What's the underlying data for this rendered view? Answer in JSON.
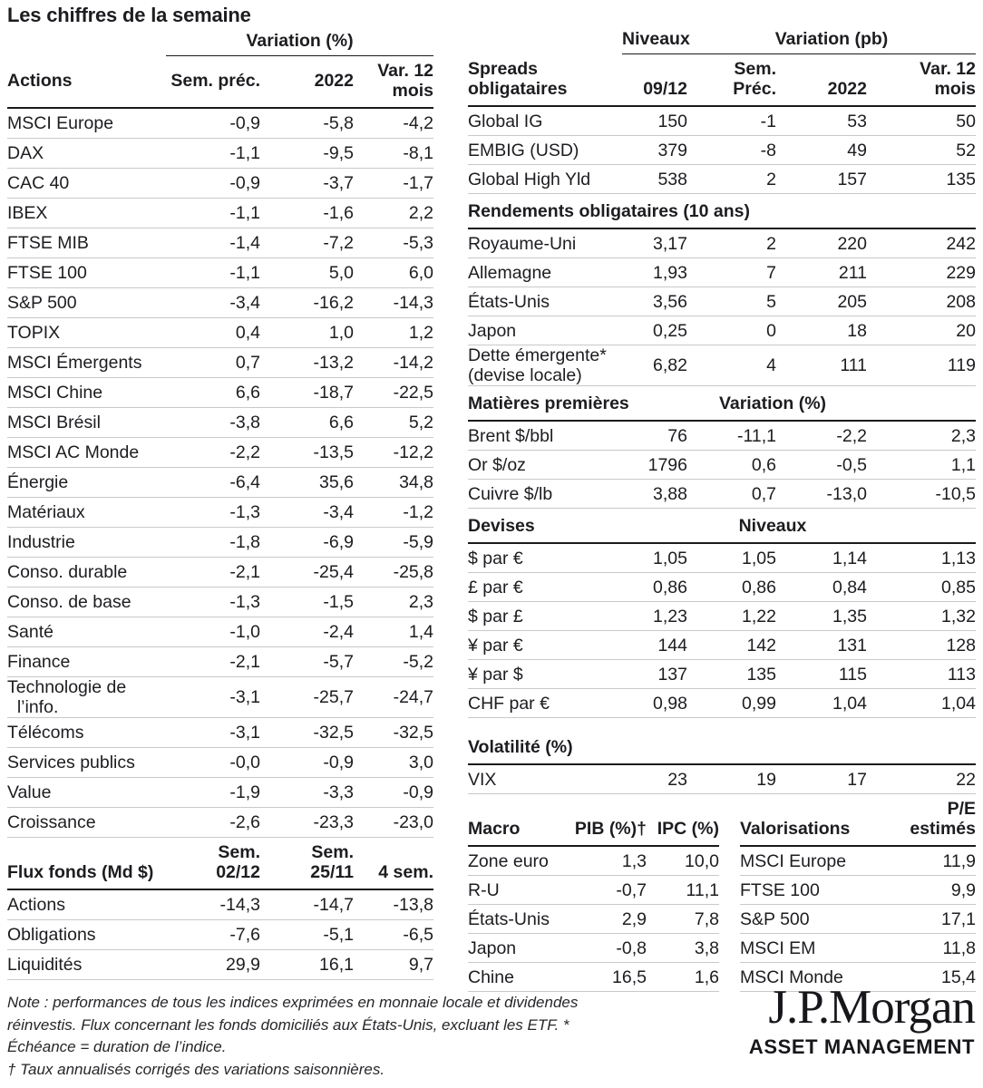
{
  "title": "Les chiffres de la semaine",
  "colors": {
    "text": "#1d1d21",
    "rule_strong": "#1a1a1a",
    "rule_light": "#c9c9cb",
    "background": "#ffffff"
  },
  "actions_table": {
    "group_header": "Variation (%)",
    "headers": {
      "label": "Actions",
      "cols": [
        "Sem. préc.",
        "2022",
        "Var. 12\nmois"
      ]
    },
    "rows": [
      [
        "MSCI Europe",
        "-0,9",
        "-5,8",
        "-4,2"
      ],
      [
        "DAX",
        "-1,1",
        "-9,5",
        "-8,1"
      ],
      [
        "CAC 40",
        "-0,9",
        "-3,7",
        "-1,7"
      ],
      [
        "IBEX",
        "-1,1",
        "-1,6",
        "2,2"
      ],
      [
        "FTSE MIB",
        "-1,4",
        "-7,2",
        "-5,3"
      ],
      [
        "FTSE 100",
        "-1,1",
        "5,0",
        "6,0"
      ],
      [
        "S&P 500",
        "-3,4",
        "-16,2",
        "-14,3"
      ],
      [
        "TOPIX",
        "0,4",
        "1,0",
        "1,2"
      ],
      [
        "MSCI Émergents",
        "0,7",
        "-13,2",
        "-14,2"
      ],
      [
        "MSCI Chine",
        "6,6",
        "-18,7",
        "-22,5"
      ],
      [
        "MSCI Brésil",
        "-3,8",
        "6,6",
        "5,2"
      ],
      [
        "MSCI AC Monde",
        "-2,2",
        "-13,5",
        "-12,2"
      ],
      [
        "Énergie",
        "-6,4",
        "35,6",
        "34,8"
      ],
      [
        "Matériaux",
        "-1,3",
        "-3,4",
        "-1,2"
      ],
      [
        "Industrie",
        "-1,8",
        "-6,9",
        "-5,9"
      ],
      [
        "Conso. durable",
        "-2,1",
        "-25,4",
        "-25,8"
      ],
      [
        "Conso. de base",
        "-1,3",
        "-1,5",
        "2,3"
      ],
      [
        "Santé",
        "-1,0",
        "-2,4",
        "1,4"
      ],
      [
        "Finance",
        "-2,1",
        "-5,7",
        "-5,2"
      ],
      [
        "Technologie de\n  l’info.",
        "-3,1",
        "-25,7",
        "-24,7"
      ],
      [
        "Télécoms",
        "-3,1",
        "-32,5",
        "-32,5"
      ],
      [
        "Services publics",
        "-0,0",
        "-0,9",
        "3,0"
      ],
      [
        "Value",
        "-1,9",
        "-3,3",
        "-0,9"
      ],
      [
        "Croissance",
        "-2,6",
        "-23,3",
        "-23,0"
      ]
    ]
  },
  "flux_table": {
    "headers": {
      "label": "Flux fonds (Md $)",
      "cols": [
        "Sem.\n02/12",
        "Sem.\n25/11",
        "4 sem."
      ]
    },
    "rows": [
      [
        "Actions",
        "-14,3",
        "-14,7",
        "-13,8"
      ],
      [
        "Obligations",
        "-7,6",
        "-5,1",
        "-6,5"
      ],
      [
        "Liquidités",
        "29,9",
        "16,1",
        "9,7"
      ]
    ]
  },
  "bonds_panel": {
    "group_headers": [
      "Niveaux",
      "Variation (pb)"
    ],
    "headers": {
      "label": "Spreads\nobligataires",
      "cols": [
        "09/12",
        "Sem.\nPréc.",
        "2022",
        "Var. 12\nmois"
      ]
    },
    "spreads_rows": [
      [
        "Global IG",
        "150",
        "-1",
        "53",
        "50"
      ],
      [
        "EMBIG (USD)",
        "379",
        "-8",
        "49",
        "52"
      ],
      [
        "Global High Yld",
        "538",
        "2",
        "157",
        "135"
      ]
    ],
    "sections": [
      {
        "title": "Rendements obligataires (10 ans)",
        "group_label": "",
        "rows": [
          [
            "Royaume-Uni",
            "3,17",
            "2",
            "220",
            "242"
          ],
          [
            "Allemagne",
            "1,93",
            "7",
            "211",
            "229"
          ],
          [
            "États-Unis",
            "3,56",
            "5",
            "205",
            "208"
          ],
          [
            "Japon",
            "0,25",
            "0",
            "18",
            "20"
          ],
          [
            "Dette émergente*\n(devise locale)",
            "6,82",
            "4",
            "111",
            "119"
          ]
        ]
      },
      {
        "title": "Matières premières",
        "group_label": "Variation (%)",
        "rows": [
          [
            "Brent $/bbl",
            "76",
            "-11,1",
            "-2,2",
            "2,3"
          ],
          [
            "Or $/oz",
            "1796",
            "0,6",
            "-0,5",
            "1,1"
          ],
          [
            "Cuivre $/lb",
            "3,88",
            "0,7",
            "-13,0",
            "-10,5"
          ]
        ]
      },
      {
        "title": "Devises",
        "group_label": "Niveaux",
        "rows": [
          [
            "$ par €",
            "1,05",
            "1,05",
            "1,14",
            "1,13"
          ],
          [
            "£ par €",
            "0,86",
            "0,86",
            "0,84",
            "0,85"
          ],
          [
            "$ par £",
            "1,23",
            "1,22",
            "1,35",
            "1,32"
          ],
          [
            "¥ par €",
            "144",
            "142",
            "131",
            "128"
          ],
          [
            "¥ par $",
            "137",
            "135",
            "115",
            "113"
          ],
          [
            "CHF par €",
            "0,98",
            "0,99",
            "1,04",
            "1,04"
          ]
        ]
      },
      {
        "title": "Volatilité (%)",
        "group_label": "",
        "rows": [
          [
            "VIX",
            "23",
            "19",
            "17",
            "22"
          ]
        ]
      }
    ]
  },
  "macro_table": {
    "headers": [
      "Macro",
      "PIB (%)†",
      "IPC (%)"
    ],
    "rows": [
      [
        "Zone euro",
        "1,3",
        "10,0"
      ],
      [
        "R-U",
        "-0,7",
        "11,1"
      ],
      [
        "États-Unis",
        "2,9",
        "7,8"
      ],
      [
        "Japon",
        "-0,8",
        "3,8"
      ],
      [
        "Chine",
        "16,5",
        "1,6"
      ]
    ]
  },
  "valuations_table": {
    "headers": {
      "label": "Valorisations",
      "col": "P/E\nestimés"
    },
    "rows": [
      [
        "MSCI Europe",
        "11,9"
      ],
      [
        "FTSE 100",
        "9,9"
      ],
      [
        "S&P 500",
        "17,1"
      ],
      [
        "MSCI EM",
        "11,8"
      ],
      [
        "MSCI Monde",
        "15,4"
      ]
    ]
  },
  "note": {
    "line1": "Note : performances de tous les indices exprimées en monnaie locale et dividendes réinvestis. Flux concernant les fonds domiciliés aux États-Unis, excluant les ETF. * Échéance = duration de l’indice.",
    "line2": "† Taux annualisés corrigés des variations saisonnières."
  },
  "logo": {
    "main": "J.P.Morgan",
    "sub": "ASSET MANAGEMENT"
  }
}
